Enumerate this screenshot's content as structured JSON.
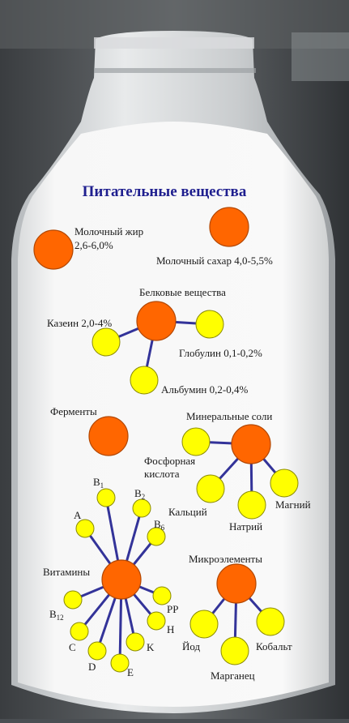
{
  "title": "Питательные вещества",
  "colors": {
    "title": "#1f1f8f",
    "orange": "#ff6600",
    "yellow": "#ffff00",
    "line": "#333399",
    "milk": "#f6f6f6"
  },
  "nodes": {
    "milk_fat": {
      "label": "Молочный жир",
      "value": "2,6-6,0%"
    },
    "milk_sugar": {
      "label": "Молочный сахар 4,0-5,5%"
    },
    "proteins": {
      "label": "Белковые вещества"
    },
    "casein": {
      "label": "Казеин 2,0-4%"
    },
    "globulin": {
      "label": "Глобулин 0,1-0,2%"
    },
    "albumin": {
      "label": "Альбумин 0,2-0,4%"
    },
    "enzymes": {
      "label": "Ферменты"
    },
    "minerals": {
      "label": "Минеральные соли"
    },
    "phosphoric_acid": {
      "label_line1": "Фосфорная",
      "label_line2": "кислота"
    },
    "calcium": {
      "label": "Кальций"
    },
    "sodium": {
      "label": "Натрий"
    },
    "magnesium": {
      "label": "Магний"
    },
    "vitamins": {
      "label": "Витамины"
    },
    "vit_a": {
      "label": "A"
    },
    "vit_b1": {
      "label": "B",
      "sub": "1"
    },
    "vit_b2": {
      "label": "B",
      "sub": "2"
    },
    "vit_b6": {
      "label": "B",
      "sub": "6"
    },
    "vit_pp": {
      "label": "PP"
    },
    "vit_h": {
      "label": "H"
    },
    "vit_k": {
      "label": "K"
    },
    "vit_e": {
      "label": "E"
    },
    "vit_d": {
      "label": "D"
    },
    "vit_c": {
      "label": "C"
    },
    "vit_b12": {
      "label": "B",
      "sub": "12"
    },
    "trace": {
      "label": "Микроэлементы"
    },
    "iodine": {
      "label": "Йод"
    },
    "manganese": {
      "label": "Марганец"
    },
    "cobalt": {
      "label": "Кобальт"
    }
  }
}
